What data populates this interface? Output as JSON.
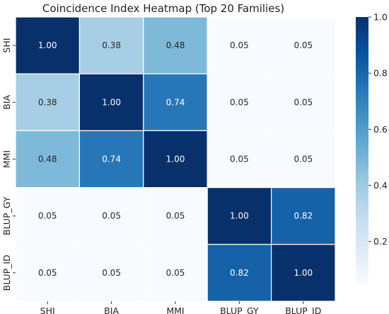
{
  "chart_data": {
    "type": "heatmap",
    "title": "Coincidence Index Heatmap (Top 20 Families)",
    "xlabel": "",
    "ylabel": "",
    "x_categories": [
      "SHI",
      "BIA",
      "MMI",
      "BLUP_GY",
      "BLUP_ID"
    ],
    "y_categories": [
      "SHI",
      "BIA",
      "MMI",
      "BLUP_GY",
      "BLUP_ID"
    ],
    "values": [
      [
        1.0,
        0.38,
        0.48,
        0.05,
        0.05
      ],
      [
        0.38,
        1.0,
        0.74,
        0.05,
        0.05
      ],
      [
        0.48,
        0.74,
        1.0,
        0.05,
        0.05
      ],
      [
        0.05,
        0.05,
        0.05,
        1.0,
        0.82
      ],
      [
        0.05,
        0.05,
        0.05,
        0.82,
        1.0
      ]
    ],
    "value_format": "0.00",
    "colormap": "Blues",
    "color_range": [
      0.05,
      1.0
    ],
    "colorbar": {
      "ticks": [
        0.2,
        0.4,
        0.6,
        0.8,
        1.0
      ],
      "tick_labels": [
        "0.2",
        "0.4",
        "0.6",
        "0.8",
        "1.0"
      ],
      "placement": "right"
    },
    "grid": false,
    "cell_border_color": "#ffffff"
  }
}
